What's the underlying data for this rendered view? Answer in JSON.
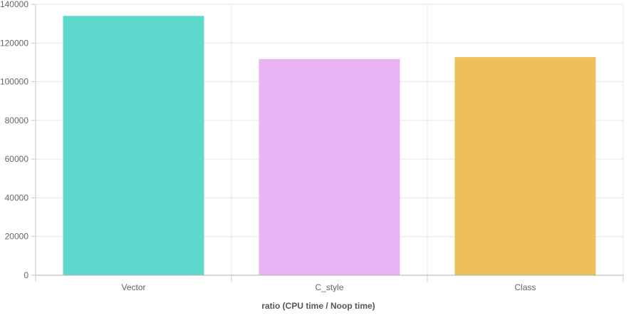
{
  "chart_data": {
    "type": "bar",
    "categories": [
      "Vector",
      "C_style",
      "Class"
    ],
    "values": [
      134000,
      111700,
      112700
    ],
    "colors": [
      "#5ed9ce",
      "#eab3f3",
      "#eec05b"
    ],
    "xlabel": "ratio (CPU time / Noop time)",
    "ylabel": "",
    "ylim": [
      0,
      140000
    ],
    "yticks": [
      "0",
      "20000",
      "40000",
      "60000",
      "80000",
      "100000",
      "120000",
      "140000"
    ],
    "grid": true
  }
}
